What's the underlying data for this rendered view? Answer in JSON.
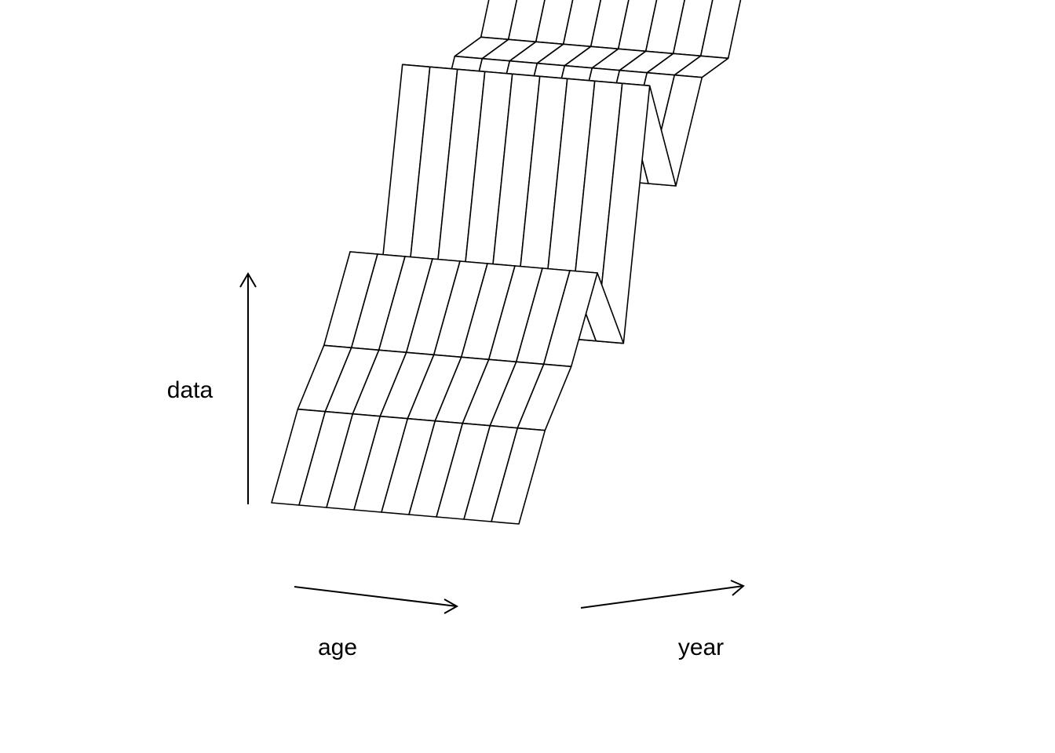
{
  "chart_data": {
    "type": "surface",
    "title": "",
    "xlabel": "age",
    "ylabel": "year",
    "zlabel": "data",
    "grid": false,
    "legend": "none",
    "colors": {
      "line": "#000000",
      "fill": "#ffffff"
    },
    "x": [
      1,
      2,
      3,
      4,
      5,
      6,
      7,
      8,
      9,
      10
    ],
    "y": [
      1,
      2,
      3,
      4,
      5,
      6,
      7,
      8,
      9,
      10
    ],
    "z": [
      [
        0.05,
        0.05,
        0.05,
        0.05,
        0.05,
        0.05,
        0.05,
        0.05,
        0.05,
        0.05
      ],
      [
        0.25,
        0.25,
        0.25,
        0.25,
        0.25,
        0.25,
        0.25,
        0.25,
        0.25,
        0.25
      ],
      [
        0.35,
        0.35,
        0.35,
        0.35,
        0.35,
        0.35,
        0.35,
        0.35,
        0.35,
        0.35
      ],
      [
        0.55,
        0.55,
        0.55,
        0.55,
        0.55,
        0.55,
        0.55,
        0.55,
        0.55,
        0.55
      ],
      [
        0.2,
        0.2,
        0.2,
        0.2,
        0.2,
        0.2,
        0.2,
        0.2,
        0.2,
        0.2
      ],
      [
        0.95,
        0.95,
        0.95,
        0.95,
        0.95,
        0.95,
        0.95,
        0.95,
        0.95,
        0.95
      ],
      [
        0.5,
        0.5,
        0.5,
        0.5,
        0.5,
        0.5,
        0.5,
        0.5,
        0.5,
        0.5
      ],
      [
        0.75,
        0.75,
        0.75,
        0.75,
        0.75,
        0.75,
        0.75,
        0.75,
        0.75,
        0.75
      ],
      [
        0.7,
        0.7,
        0.7,
        0.7,
        0.7,
        0.7,
        0.7,
        0.7,
        0.7,
        0.7
      ],
      [
        1.0,
        1.0,
        1.0,
        1.0,
        1.0,
        1.0,
        1.0,
        1.0,
        1.0,
        1.0
      ]
    ]
  }
}
